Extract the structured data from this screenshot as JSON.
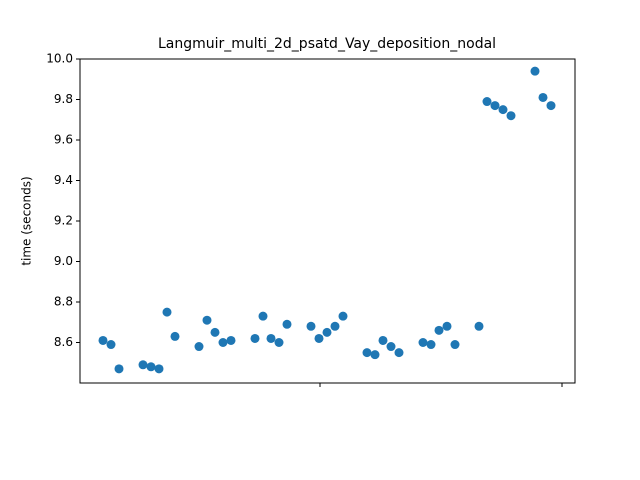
{
  "chart_data": {
    "type": "scatter",
    "title": "Langmuir_multi_2d_psatd_Vay_deposition_nodal",
    "y_label": "time (seconds)",
    "color": "#1f77b4",
    "x": [
      0,
      1,
      2,
      5,
      6,
      7,
      8,
      9,
      12,
      13,
      14,
      15,
      16,
      19,
      20,
      21,
      22,
      23,
      26,
      27,
      28,
      29,
      30,
      33,
      34,
      35,
      36,
      37,
      40,
      41,
      42,
      43,
      44,
      47,
      48,
      49,
      50,
      51,
      54,
      55,
      56
    ],
    "values": [
      8.61,
      8.59,
      8.47,
      8.49,
      8.48,
      8.47,
      8.75,
      8.63,
      8.58,
      8.71,
      8.65,
      8.6,
      8.61,
      8.62,
      8.73,
      8.62,
      8.6,
      8.69,
      8.68,
      8.62,
      8.65,
      8.68,
      8.73,
      8.55,
      8.54,
      8.61,
      8.58,
      8.55,
      8.6,
      8.59,
      8.66,
      8.68,
      8.59,
      8.68,
      9.79,
      9.77,
      9.75,
      9.72,
      9.94,
      9.81,
      9.77
    ],
    "xlim": [
      -2.875,
      59
    ],
    "xticks": [
      27.125,
      57.375
    ],
    "ylim": [
      8.4,
      10.0
    ],
    "yticks": [
      8.6,
      8.8,
      {
        "value": 9,
        "label": "9.0"
      },
      9.2,
      9.4,
      9.6,
      9.8,
      {
        "value": 10,
        "label": "10.0"
      }
    ]
  }
}
